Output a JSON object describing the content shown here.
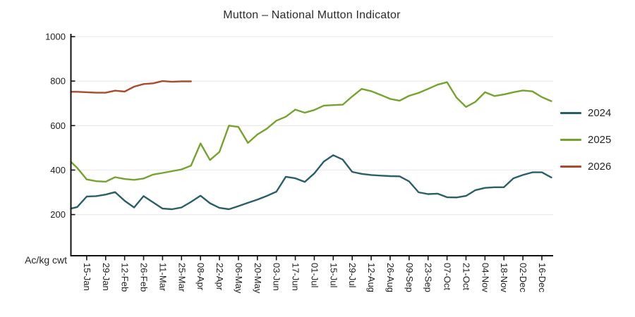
{
  "chart_data": {
    "type": "line",
    "title": "Mutton – National Mutton Indicator",
    "ylabel": "Ac/kg cwt",
    "ylim": [
      15,
      1000
    ],
    "y_ticks": [
      1000,
      800,
      600,
      400,
      200
    ],
    "grid": "horizontal-light-gray",
    "legend_position": "right",
    "x_description": "weekly data points starting 01-Jan (index 0); axis tick labels every 2 weeks at point indices 2,4,...,50",
    "x_tick_labels": [
      "15-Jan",
      "29-Jan",
      "12-Feb",
      "26-Feb",
      "11-Mar",
      "25-Mar",
      "08-Apr",
      "22-Apr",
      "06-May",
      "20-May",
      "03-Jun",
      "17-Jun",
      "01-Jul",
      "15-Jul",
      "29-Jul",
      "12-Aug",
      "26-Aug",
      "09-Sep",
      "23-Sep",
      "07-Oct",
      "21-Oct",
      "04-Nov",
      "18-Nov",
      "02-Dec",
      "16-Dec"
    ],
    "series": [
      {
        "name": "2024",
        "color": "#2a5f68",
        "values": [
          227,
          234,
          281,
          283,
          290,
          301,
          262,
          232,
          283,
          255,
          227,
          224,
          232,
          257,
          285,
          251,
          230,
          224,
          238,
          253,
          267,
          284,
          303,
          370,
          363,
          347,
          385,
          438,
          467,
          447,
          392,
          383,
          378,
          375,
          373,
          372,
          349,
          300,
          292,
          294,
          278,
          277,
          284,
          310,
          320,
          323,
          323,
          363,
          378,
          390,
          390,
          367
        ]
      },
      {
        "name": "2025",
        "color": "#75a32d",
        "values": [
          437,
          410,
          358,
          350,
          348,
          368,
          360,
          356,
          362,
          380,
          387,
          395,
          403,
          420,
          520,
          445,
          482,
          600,
          594,
          522,
          560,
          586,
          622,
          640,
          672,
          658,
          670,
          690,
          692,
          694,
          731,
          765,
          755,
          738,
          720,
          712,
          734,
          747,
          765,
          784,
          795,
          726,
          684,
          707,
          750,
          733,
          740,
          750,
          758,
          754,
          728,
          710
        ]
      },
      {
        "name": "2026",
        "color": "#ab4a2e",
        "values": [
          752,
          752,
          750,
          748,
          748,
          757,
          753,
          775,
          787,
          790,
          800,
          797,
          799,
          799
        ]
      }
    ],
    "axis_color": "#111111",
    "gridline_color": "#ececec"
  }
}
